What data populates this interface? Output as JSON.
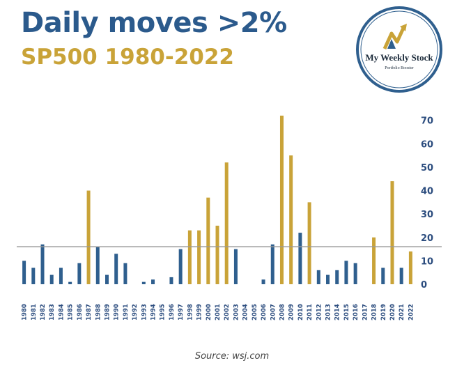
{
  "header": {
    "title": "Daily moves >2%",
    "subtitle": "SP500 1980-2022"
  },
  "logo": {
    "name": "My Weekly Stock",
    "tagline": "Portfolio Booster"
  },
  "footer": {
    "source": "Source: wsj.com"
  },
  "colors": {
    "title": "#2b5a8c",
    "subtitle": "#c9a338",
    "bar_blue": "#2f5f8e",
    "bar_gold": "#c9a338",
    "axis_text": "#2b4c7e",
    "reference_line": "#999999"
  },
  "chart_data": {
    "type": "bar",
    "categories": [
      "1980",
      "1981",
      "1982",
      "1983",
      "1984",
      "1985",
      "1986",
      "1987",
      "1988",
      "1989",
      "1990",
      "1991",
      "1992",
      "1993",
      "1994",
      "1995",
      "1996",
      "1997",
      "1998",
      "1999",
      "2000",
      "2001",
      "2002",
      "2003",
      "2004",
      "2005",
      "2006",
      "2007",
      "2008",
      "2009",
      "2010",
      "2011",
      "2012",
      "2013",
      "2014",
      "2015",
      "2016",
      "2017",
      "2018",
      "2019",
      "2020",
      "2021",
      "2022"
    ],
    "values": [
      10,
      7,
      17,
      4,
      7,
      1,
      9,
      40,
      16,
      4,
      13,
      9,
      0,
      1,
      2,
      0,
      3,
      15,
      23,
      23,
      37,
      25,
      52,
      15,
      0,
      0,
      2,
      17,
      72,
      55,
      22,
      35,
      6,
      4,
      6,
      10,
      9,
      0,
      20,
      7,
      44,
      7,
      14
    ],
    "highlight": [
      false,
      false,
      false,
      false,
      false,
      false,
      false,
      true,
      false,
      false,
      false,
      false,
      false,
      false,
      false,
      false,
      false,
      false,
      true,
      true,
      true,
      true,
      true,
      false,
      false,
      false,
      false,
      false,
      true,
      true,
      false,
      true,
      false,
      false,
      false,
      false,
      false,
      false,
      true,
      false,
      true,
      false,
      true
    ],
    "reference_value": 16,
    "y_ticks": [
      0,
      10,
      20,
      30,
      40,
      50,
      60,
      70
    ],
    "ylim": [
      0,
      72
    ],
    "y_axis_position": "right",
    "grid": false,
    "legend": "none"
  }
}
